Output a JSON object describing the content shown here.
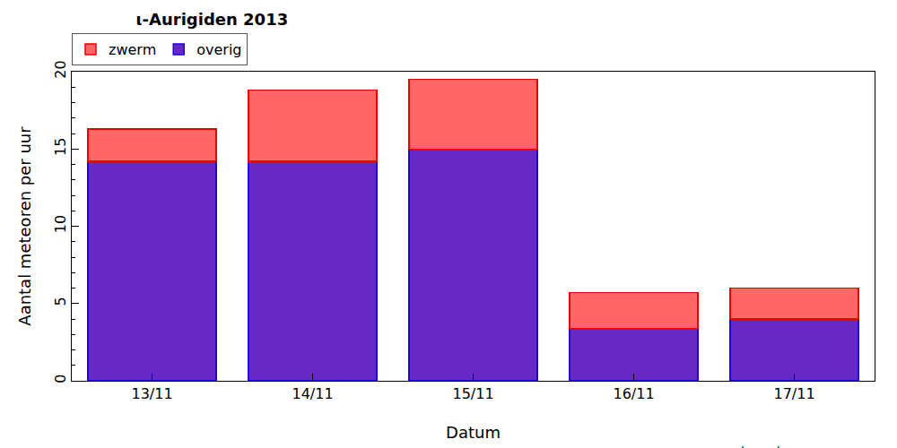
{
  "chart_data": {
    "type": "bar",
    "title": "ι-Aurigiden 2013",
    "x_label": "Datum",
    "y_label": "Aantal meteoren per uur",
    "categories": [
      "13/11",
      "14/11",
      "15/11",
      "16/11",
      "17/11"
    ],
    "series": [
      {
        "name": "overig",
        "color": "#6629c4",
        "values": [
          14.2,
          14.2,
          15.0,
          3.4,
          4.0
        ]
      },
      {
        "name": "zwerm",
        "color": "#ff6666",
        "values": [
          2.1,
          4.6,
          4.5,
          2.3,
          2.0
        ]
      }
    ],
    "stacked": true,
    "ylim": [
      0,
      20
    ],
    "yticks": [
      0,
      5,
      10,
      15,
      20
    ],
    "grid": false,
    "legend": "upper left",
    "annotations": [
      {
        "text": "hemel.waarnemen.com"
      }
    ]
  }
}
